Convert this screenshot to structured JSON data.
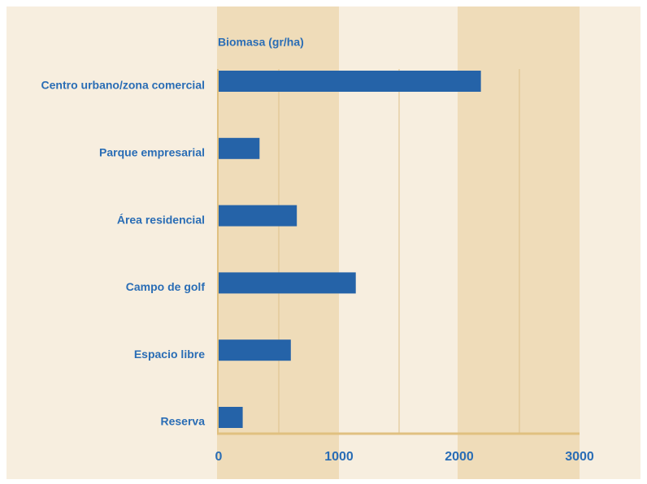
{
  "chart_data": {
    "type": "barh",
    "title": "Biomasa (gr/ha)",
    "categories": [
      "Centro urbano/zona comercial",
      "Parque empresarial",
      "Área residencial",
      "Campo de golf",
      "Espacio libre",
      "Reserva"
    ],
    "values": [
      2180,
      340,
      650,
      1140,
      600,
      200
    ],
    "color": "#2563a8",
    "xlim": [
      0,
      3000
    ],
    "xticks": [
      0,
      1000,
      2000,
      3000
    ],
    "grid_lines": [
      500,
      1500,
      2500
    ]
  }
}
